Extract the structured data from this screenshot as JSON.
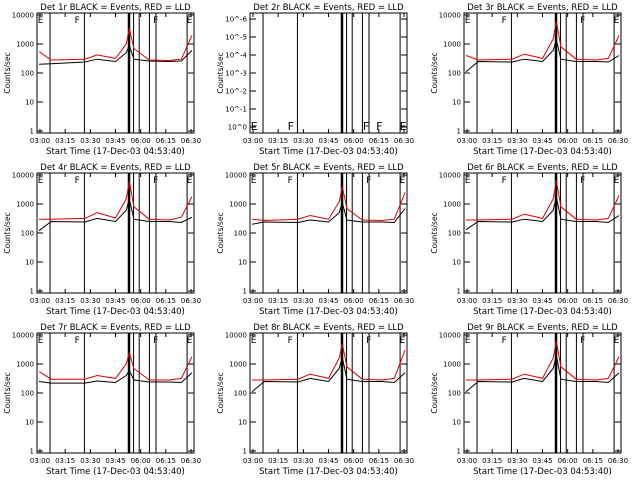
{
  "chart_data": [
    {
      "type": "line",
      "title": "Det 1r  BLACK = Events, RED = LLD",
      "xlabel": "Start Time (17-Dec-03 04:53:40)",
      "ylabel": "Counts/sec",
      "x_ticks": [
        "03:00",
        "03:15",
        "03:30",
        "03:45",
        "06:00",
        "06:15",
        "06:30"
      ],
      "y_ticks": [
        "1",
        "10",
        "100",
        "1000",
        "10000"
      ],
      "ylim": [
        1,
        10000
      ],
      "y_scale": "log",
      "markers": [
        "E",
        "F",
        "F",
        "E"
      ],
      "series": [
        {
          "color": "#000000",
          "values": [
            200,
            210,
            240,
            300,
            250,
            500,
            900,
            300,
            260,
            250,
            260,
            600
          ]
        },
        {
          "color": "#dd0000",
          "values": [
            550,
            280,
            300,
            420,
            320,
            1000,
            3500,
            700,
            280,
            270,
            300,
            2000
          ]
        }
      ]
    },
    {
      "type": "line",
      "title": "Det 2r  BLACK = Events, RED = LLD",
      "xlabel": "Start Time (17-Dec-03 04:53:40)",
      "ylabel": "Counts/sec",
      "x_ticks": [
        "03:00",
        "03:15",
        "03:30",
        "03:45",
        "06:00",
        "06:15",
        "06:30"
      ],
      "y_ticks": [
        "10^0",
        "10^-1",
        "10^-2",
        "10^-3",
        "10^-4",
        "10^-5",
        "10^-6"
      ],
      "y_scale": "log",
      "markers": [
        "E",
        "F",
        "F",
        "F",
        "E"
      ],
      "series": []
    },
    {
      "type": "line",
      "title": "Det 3r  BLACK = Events, RED = LLD",
      "xlabel": "Start Time (17-Dec-03 04:53:40)",
      "ylabel": "Counts/sec",
      "x_ticks": [
        "03:00",
        "03:15",
        "03:30",
        "03:45",
        "06:00",
        "06:15",
        "06:30"
      ],
      "y_ticks": [
        "1",
        "10",
        "100",
        "1000",
        "10000"
      ],
      "ylim": [
        1,
        10000
      ],
      "y_scale": "log",
      "markers": [
        "E",
        "F",
        "F",
        "E"
      ],
      "series": [
        {
          "color": "#000000",
          "values": [
            110,
            250,
            240,
            300,
            250,
            600,
            1400,
            300,
            250,
            250,
            240,
            400
          ]
        },
        {
          "color": "#dd0000",
          "values": [
            400,
            280,
            300,
            450,
            320,
            1500,
            6000,
            800,
            300,
            280,
            320,
            2000
          ]
        }
      ]
    },
    {
      "type": "line",
      "title": "Det 4r  BLACK = Events, RED = LLD",
      "xlabel": "Start Time (17-Dec-03 04:53:40)",
      "ylabel": "Counts/sec",
      "x_ticks": [
        "03:00",
        "03:15",
        "03:30",
        "03:45",
        "06:00",
        "06:15",
        "06:30"
      ],
      "y_ticks": [
        "1",
        "10",
        "100",
        "1000",
        "10000"
      ],
      "ylim": [
        1,
        10000
      ],
      "y_scale": "log",
      "markers": [
        "E",
        "F",
        "F",
        "E"
      ],
      "series": [
        {
          "color": "#000000",
          "values": [
            120,
            250,
            240,
            320,
            250,
            600,
            1500,
            300,
            250,
            250,
            230,
            350
          ]
        },
        {
          "color": "#dd0000",
          "values": [
            300,
            300,
            320,
            500,
            330,
            1500,
            6000,
            800,
            300,
            280,
            350,
            1800
          ]
        }
      ]
    },
    {
      "type": "line",
      "title": "Det 5r  BLACK = Events, RED = LLD",
      "xlabel": "Start Time (17-Dec-03 04:53:40)",
      "ylabel": "Counts/sec",
      "x_ticks": [
        "03:00",
        "03:15",
        "03:30",
        "03:45",
        "06:00",
        "06:15",
        "06:30"
      ],
      "y_ticks": [
        "1",
        "10",
        "100",
        "1000",
        "10000"
      ],
      "ylim": [
        1,
        10000
      ],
      "y_scale": "log",
      "markers": [
        "E",
        "F",
        "F",
        "E"
      ],
      "series": [
        {
          "color": "#000000",
          "values": [
            200,
            240,
            230,
            280,
            240,
            500,
            1100,
            280,
            240,
            240,
            230,
            700
          ]
        },
        {
          "color": "#dd0000",
          "values": [
            300,
            270,
            300,
            400,
            300,
            1200,
            4000,
            700,
            280,
            270,
            300,
            2500
          ]
        }
      ]
    },
    {
      "type": "line",
      "title": "Det 6r  BLACK = Events, RED = LLD",
      "xlabel": "Start Time (17-Dec-03 04:53:40)",
      "ylabel": "Counts/sec",
      "x_ticks": [
        "03:00",
        "03:15",
        "03:30",
        "03:45",
        "06:00",
        "06:15",
        "06:30"
      ],
      "y_ticks": [
        "1",
        "10",
        "100",
        "1000",
        "10000"
      ],
      "ylim": [
        1,
        10000
      ],
      "y_scale": "log",
      "markers": [
        "E",
        "F",
        "F",
        "E"
      ],
      "series": [
        {
          "color": "#000000",
          "values": [
            130,
            250,
            240,
            300,
            250,
            600,
            1800,
            300,
            250,
            250,
            230,
            400
          ]
        },
        {
          "color": "#dd0000",
          "values": [
            280,
            280,
            300,
            450,
            320,
            1500,
            6500,
            800,
            300,
            280,
            320,
            2000
          ]
        }
      ]
    },
    {
      "type": "line",
      "title": "Det 7r  BLACK = Events, RED = LLD",
      "xlabel": "Start Time (17-Dec-03 04:53:40)",
      "ylabel": "Counts/sec",
      "x_ticks": [
        "03:00",
        "03:15",
        "03:30",
        "03:45",
        "06:00",
        "06:15",
        "06:30"
      ],
      "y_ticks": [
        "1",
        "10",
        "100",
        "1000",
        "10000"
      ],
      "ylim": [
        1,
        10000
      ],
      "y_scale": "log",
      "markers": [
        "E",
        "F",
        "F",
        "E"
      ],
      "series": [
        {
          "color": "#000000",
          "values": [
            250,
            220,
            220,
            260,
            230,
            400,
            600,
            280,
            240,
            240,
            230,
            500
          ]
        },
        {
          "color": "#dd0000",
          "values": [
            550,
            300,
            300,
            400,
            320,
            1000,
            2500,
            700,
            280,
            280,
            320,
            1800
          ]
        }
      ]
    },
    {
      "type": "line",
      "title": "Det 8r  BLACK = Events, RED = LLD",
      "xlabel": "Start Time (17-Dec-03 04:53:40)",
      "ylabel": "Counts/sec",
      "x_ticks": [
        "03:00",
        "03:15",
        "03:30",
        "03:45",
        "06:00",
        "06:15",
        "06:30"
      ],
      "y_ticks": [
        "1",
        "10",
        "100",
        "1000",
        "10000"
      ],
      "ylim": [
        1,
        10000
      ],
      "y_scale": "log",
      "markers": [
        "E",
        "F",
        "F",
        "E"
      ],
      "series": [
        {
          "color": "#000000",
          "values": [
            110,
            250,
            240,
            320,
            250,
            700,
            1700,
            300,
            250,
            250,
            230,
            500
          ]
        },
        {
          "color": "#dd0000",
          "values": [
            280,
            280,
            300,
            450,
            320,
            1600,
            5000,
            800,
            300,
            280,
            320,
            3000
          ]
        }
      ]
    },
    {
      "type": "line",
      "title": "Det 9r  BLACK = Events, RED = LLD",
      "xlabel": "Start Time (17-Dec-03 04:53:40)",
      "ylabel": "Counts/sec",
      "x_ticks": [
        "03:00",
        "03:15",
        "03:30",
        "03:45",
        "06:00",
        "06:15",
        "06:30"
      ],
      "y_ticks": [
        "1",
        "10",
        "100",
        "1000",
        "10000"
      ],
      "ylim": [
        1,
        10000
      ],
      "y_scale": "log",
      "markers": [
        "E",
        "F",
        "F",
        "E"
      ],
      "series": [
        {
          "color": "#000000",
          "values": [
            110,
            250,
            240,
            320,
            250,
            700,
            2000,
            300,
            250,
            250,
            230,
            500
          ]
        },
        {
          "color": "#dd0000",
          "values": [
            280,
            280,
            300,
            450,
            320,
            1600,
            6000,
            800,
            300,
            280,
            320,
            1800
          ]
        }
      ]
    }
  ]
}
